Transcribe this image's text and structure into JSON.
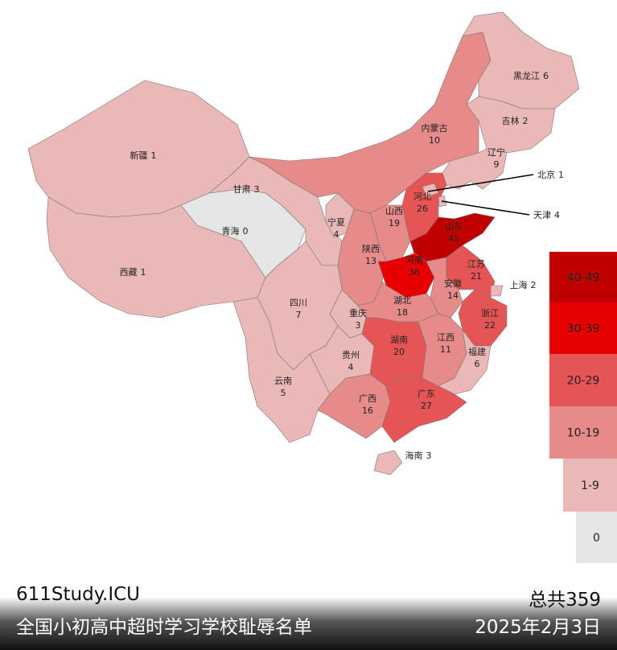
{
  "map": {
    "provinces": [
      {
        "name": "新疆",
        "value": 1,
        "color": "#ebb8b8"
      },
      {
        "name": "西藏",
        "value": 1,
        "color": "#ebb8b8"
      },
      {
        "name": "青海",
        "value": 0,
        "color": "#e6e6e6"
      },
      {
        "name": "甘肃",
        "value": 3,
        "color": "#ebb8b8"
      },
      {
        "name": "内蒙古",
        "value": 10,
        "color": "#e68a8a"
      },
      {
        "name": "黑龙江",
        "value": 6,
        "color": "#ebb8b8"
      },
      {
        "name": "吉林",
        "value": 2,
        "color": "#ebb8b8"
      },
      {
        "name": "辽宁",
        "value": 9,
        "color": "#ebb8b8"
      },
      {
        "name": "河北",
        "value": 26,
        "color": "#e65555"
      },
      {
        "name": "北京",
        "value": 1,
        "color": "#ebb8b8"
      },
      {
        "name": "天津",
        "value": 4,
        "color": "#ebb8b8"
      },
      {
        "name": "山西",
        "value": 19,
        "color": "#e68a8a"
      },
      {
        "name": "山东",
        "value": 45,
        "color": "#c00000"
      },
      {
        "name": "宁夏",
        "value": 4,
        "color": "#ebb8b8"
      },
      {
        "name": "陕西",
        "value": 13,
        "color": "#e68a8a"
      },
      {
        "name": "河南",
        "value": 36,
        "color": "#e60000"
      },
      {
        "name": "江苏",
        "value": 21,
        "color": "#e65555"
      },
      {
        "name": "安徽",
        "value": 14,
        "color": "#e68a8a"
      },
      {
        "name": "上海",
        "value": 2,
        "color": "#ebb8b8"
      },
      {
        "name": "浙江",
        "value": 22,
        "color": "#e65555"
      },
      {
        "name": "湖北",
        "value": 18,
        "color": "#e68a8a"
      },
      {
        "name": "重庆",
        "value": 3,
        "color": "#ebb8b8"
      },
      {
        "name": "四川",
        "value": 7,
        "color": "#ebb8b8"
      },
      {
        "name": "贵州",
        "value": 4,
        "color": "#ebb8b8"
      },
      {
        "name": "湖南",
        "value": 20,
        "color": "#e65555"
      },
      {
        "name": "江西",
        "value": 11,
        "color": "#e68a8a"
      },
      {
        "name": "福建",
        "value": 6,
        "color": "#ebb8b8"
      },
      {
        "name": "云南",
        "value": 5,
        "color": "#ebb8b8"
      },
      {
        "name": "广西",
        "value": 16,
        "color": "#e68a8a"
      },
      {
        "name": "广东",
        "value": 27,
        "color": "#e65555"
      },
      {
        "name": "海南",
        "value": 3,
        "color": "#ebb8b8"
      }
    ],
    "legend": [
      {
        "label": "40-49",
        "color": "#c00000"
      },
      {
        "label": "30-39",
        "color": "#e60000"
      },
      {
        "label": "20-29",
        "color": "#e65555"
      },
      {
        "label": "10-19",
        "color": "#e68a8a"
      },
      {
        "label": "1-9",
        "color": "#ebb8b8"
      },
      {
        "label": "0",
        "color": "#e6e6e6"
      }
    ]
  },
  "footer": {
    "site": "611Study.ICU",
    "title": "全国小初高中超时学习学校耻辱名单",
    "total": "总共359",
    "date": "2025年2月3日"
  }
}
